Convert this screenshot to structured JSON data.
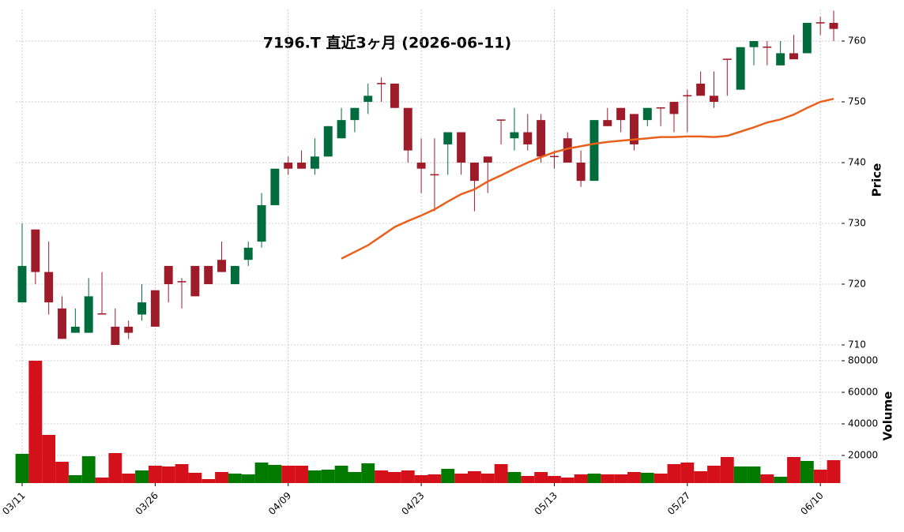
{
  "chart_data": {
    "type": "candlestick",
    "title": "7196.T  直近3ヶ月  (2026-06-11)",
    "ylabel": "Price",
    "volume_label": "Volume",
    "categories": [
      "03/11",
      null,
      null,
      null,
      null,
      null,
      null,
      null,
      null,
      null,
      "03/26",
      null,
      null,
      null,
      null,
      null,
      null,
      null,
      null,
      null,
      "04/09",
      null,
      null,
      null,
      null,
      null,
      null,
      null,
      null,
      null,
      "04/23",
      null,
      null,
      null,
      null,
      null,
      null,
      null,
      null,
      null,
      "05/13",
      null,
      null,
      null,
      null,
      null,
      null,
      null,
      null,
      null,
      "05/27",
      null,
      null,
      null,
      null,
      null,
      null,
      null,
      null,
      null,
      "06/10",
      null
    ],
    "open": [
      717,
      729,
      722,
      716,
      712,
      712,
      715.2,
      713,
      713,
      715,
      719,
      723,
      720.5,
      723,
      723,
      724,
      720,
      724,
      727,
      733,
      740,
      740,
      739,
      741,
      744,
      747,
      750,
      753.1,
      753,
      749,
      740,
      738.1,
      743,
      745,
      740,
      741,
      747.1,
      744,
      745,
      747,
      741.1,
      744,
      740,
      737,
      747,
      749,
      748,
      747,
      749.1,
      750,
      751.1,
      753,
      751,
      757.1,
      752,
      759,
      759.1,
      756,
      758,
      758,
      763.1,
      763
    ],
    "high": [
      730,
      729,
      727,
      718,
      716,
      721,
      722,
      716,
      714,
      720,
      719,
      723,
      721,
      723,
      723,
      727,
      723,
      727,
      735,
      739,
      741,
      742,
      744,
      746,
      749,
      749,
      753,
      754,
      753,
      749,
      744,
      744,
      745,
      745,
      740,
      741,
      747,
      749,
      748,
      748,
      742,
      745,
      742,
      747,
      749,
      749,
      748,
      749,
      749,
      750,
      752,
      755,
      755,
      757,
      759,
      760,
      760,
      760,
      761,
      763,
      764,
      765
    ],
    "low": [
      717,
      720,
      715,
      711,
      712,
      712,
      715,
      710,
      711,
      714,
      713,
      717,
      716,
      718,
      720,
      722,
      720,
      723,
      726,
      733,
      738,
      739,
      738,
      741,
      744,
      745,
      748,
      750,
      749,
      740,
      735,
      732,
      738,
      738,
      732,
      735,
      743,
      742,
      742,
      740,
      739,
      740,
      736,
      737,
      746,
      745,
      742,
      746,
      746,
      745,
      745,
      751,
      749,
      751,
      752,
      756,
      756,
      756,
      757,
      758,
      761,
      760
    ],
    "close": [
      723,
      722,
      717,
      711,
      713,
      718,
      715,
      710,
      712,
      717,
      713,
      720,
      720.3,
      718,
      720,
      722,
      723,
      726,
      733,
      739,
      739,
      739,
      741,
      746,
      747,
      749,
      751,
      752.9,
      749,
      742,
      739,
      737.9,
      745,
      740,
      737,
      740,
      746.9,
      745,
      743,
      741,
      740.9,
      740,
      737,
      747,
      746,
      747,
      743,
      749,
      748.9,
      748,
      750.9,
      751,
      750,
      756.9,
      759,
      760,
      758.9,
      758,
      757,
      763,
      762.9,
      762
    ],
    "ma": {
      "color": "#e8601c",
      "values": [
        null,
        null,
        null,
        null,
        null,
        null,
        null,
        null,
        null,
        null,
        null,
        null,
        null,
        null,
        null,
        null,
        null,
        null,
        null,
        null,
        null,
        null,
        null,
        null,
        724.2,
        725.3,
        726.4,
        727.9,
        729.4,
        730.4,
        731.3,
        732.3,
        733.6,
        734.8,
        735.6,
        736.9,
        737.9,
        739.0,
        740.0,
        740.9,
        741.7,
        742.3,
        742.7,
        743.1,
        743.4,
        743.6,
        743.8,
        744.0,
        744.2,
        744.2,
        744.3,
        744.3,
        744.2,
        744.4,
        745.1,
        745.8,
        746.6,
        747.1,
        747.9,
        749.0,
        750.0,
        750.5
      ]
    },
    "volume": [
      21000,
      80000,
      33000,
      16000,
      7500,
      19500,
      6000,
      21500,
      8500,
      10500,
      13500,
      13000,
      14500,
      9000,
      5000,
      9500,
      8500,
      8000,
      15500,
      14000,
      13500,
      13500,
      10500,
      11000,
      13500,
      9500,
      15000,
      10500,
      9500,
      10500,
      7500,
      8000,
      11500,
      8500,
      10000,
      8500,
      14500,
      9500,
      7000,
      9500,
      7000,
      6000,
      8000,
      8500,
      8000,
      8000,
      9500,
      9000,
      8500,
      14500,
      15500,
      10000,
      13500,
      19000,
      13000,
      13000,
      8000,
      6500,
      19000,
      16500,
      11000,
      17000
    ],
    "up_color": "#006b3c",
    "down_color": "#9e1b2a",
    "volume_up_color": "#007a00",
    "volume_down_color": "#d4111b",
    "ylim": [
      708.7,
      765.2
    ],
    "yticks": [
      710,
      720,
      730,
      740,
      750,
      760
    ],
    "volume_ylim": [
      2500,
      85000
    ],
    "volume_yticks": [
      20000,
      40000,
      60000,
      80000
    ],
    "grid": true
  }
}
